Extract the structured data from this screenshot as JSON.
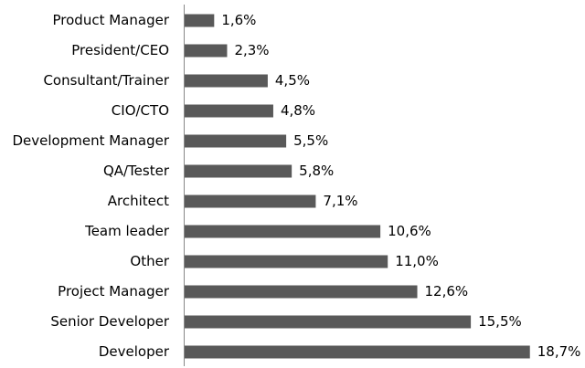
{
  "chart_data": {
    "type": "bar",
    "horizontal": true,
    "categories": [
      "Product Manager",
      "President/CEO",
      "Consultant/Trainer",
      "CIO/CTO",
      "Development Manager",
      "QA/Tester",
      "Architect",
      "Team leader",
      "Other",
      "Project Manager",
      "Senior Developer",
      "Developer"
    ],
    "values": [
      1.6,
      2.3,
      4.5,
      4.8,
      5.5,
      5.8,
      7.1,
      10.6,
      11.0,
      12.6,
      15.5,
      18.7
    ],
    "value_labels": [
      "1,6%",
      "2,3%",
      "4,5%",
      "4,8%",
      "5,5%",
      "5,8%",
      "7,1%",
      "10,6%",
      "11,0%",
      "12,6%",
      "15,5%",
      "18,7%"
    ],
    "color": "#595959"
  }
}
